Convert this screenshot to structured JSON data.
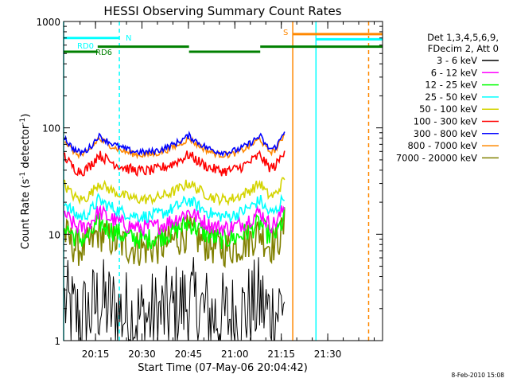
{
  "chart_data": {
    "type": "line",
    "title": "HESSI Observing Summary Count Rates",
    "xlabel": "Start Time (07-May-06 20:04:42)",
    "ylabel_main": "Count Rate (s",
    "ylabel_sup1": "-1",
    "ylabel_mid": " detector",
    "ylabel_sup2": "-1",
    "ylabel_end": ")",
    "yscale": "log",
    "ylim": [
      1,
      1000
    ],
    "xlim_minutes": [
      0,
      103
    ],
    "x_unit": "minutes after 20:04:42",
    "x_ticks": [
      {
        "label": "20:15",
        "t": 10.3
      },
      {
        "label": "20:30",
        "t": 25.3
      },
      {
        "label": "20:45",
        "t": 40.3
      },
      {
        "label": "21:00",
        "t": 55.3
      },
      {
        "label": "21:15",
        "t": 70.3
      },
      {
        "label": "21:30",
        "t": 85.3
      }
    ],
    "y_ticks": [
      {
        "label": "1",
        "v": 1
      },
      {
        "label": "10",
        "v": 10
      },
      {
        "label": "100",
        "v": 100
      },
      {
        "label": "1000",
        "v": 1000
      }
    ],
    "legend_header": [
      "Det 1,3,4,5,6,9,",
      "FDecim 2, Att 0"
    ],
    "legend_position": "right",
    "timestamp": "8-Feb-2010 15:08",
    "series": [
      {
        "name": "3 - 6 keV",
        "color": "#000000",
        "base": 2.0,
        "noise": 0.45
      },
      {
        "name": "6 - 12 keV",
        "color": "#ff00ff",
        "base": 14,
        "noise": 0.08
      },
      {
        "name": "12 - 25 keV",
        "color": "#00ff00",
        "base": 11,
        "noise": 0.1
      },
      {
        "name": "25 - 50 keV",
        "color": "#00ffff",
        "base": 18,
        "noise": 0.06
      },
      {
        "name": "50 - 100 keV",
        "color": "#d4d400",
        "base": 26,
        "noise": 0.05
      },
      {
        "name": "100 - 300 keV",
        "color": "#ff0000",
        "base": 48,
        "noise": 0.05
      },
      {
        "name": "300 - 800 keV",
        "color": "#0000ff",
        "base": 72,
        "noise": 0.03
      },
      {
        "name": "800 - 7000 keV",
        "color": "#ff8800",
        "base": 68,
        "noise": 0.03
      },
      {
        "name": "7000 - 20000 keV",
        "color": "#808000",
        "base": 9,
        "noise": 0.18
      }
    ],
    "orbit_segments": [
      {
        "start": 0,
        "end": 11.2
      },
      {
        "start": 11.2,
        "end": 40.5
      },
      {
        "start": 40.5,
        "end": 63.5
      },
      {
        "start": 63.5,
        "end": 71.5
      }
    ],
    "flag_bars": [
      {
        "label": "RD0",
        "color": "#00ffff",
        "value": 700,
        "start": 0,
        "end": 18
      },
      {
        "label": "N",
        "color": "#00ffff",
        "value": 700,
        "start": 18,
        "end": 18
      },
      {
        "label": "RD6",
        "color": "#008000",
        "value": 520,
        "start": 0,
        "end": 11
      },
      {
        "label": "",
        "color": "#008000",
        "value": 580,
        "start": 11,
        "end": 40.5
      },
      {
        "label": "",
        "color": "#008000",
        "value": 520,
        "start": 40.5,
        "end": 63.5
      },
      {
        "label": "",
        "color": "#008000",
        "value": 580,
        "start": 63.5,
        "end": 103
      },
      {
        "label": "S",
        "color": "#ff8800",
        "value": 760,
        "start": 74,
        "end": 103
      },
      {
        "label": "",
        "color": "#00ffff",
        "value": 680,
        "start": 81.5,
        "end": 103
      }
    ],
    "vertical_markers": [
      {
        "t": 0,
        "color": "#00ffff",
        "style": "solid"
      },
      {
        "t": 18,
        "color": "#00ffff",
        "style": "dashed"
      },
      {
        "t": 74,
        "color": "#ff8800",
        "style": "solid"
      },
      {
        "t": 81.5,
        "color": "#00ffff",
        "style": "solid"
      },
      {
        "t": 98.5,
        "color": "#ff8800",
        "style": "dashed"
      }
    ]
  }
}
